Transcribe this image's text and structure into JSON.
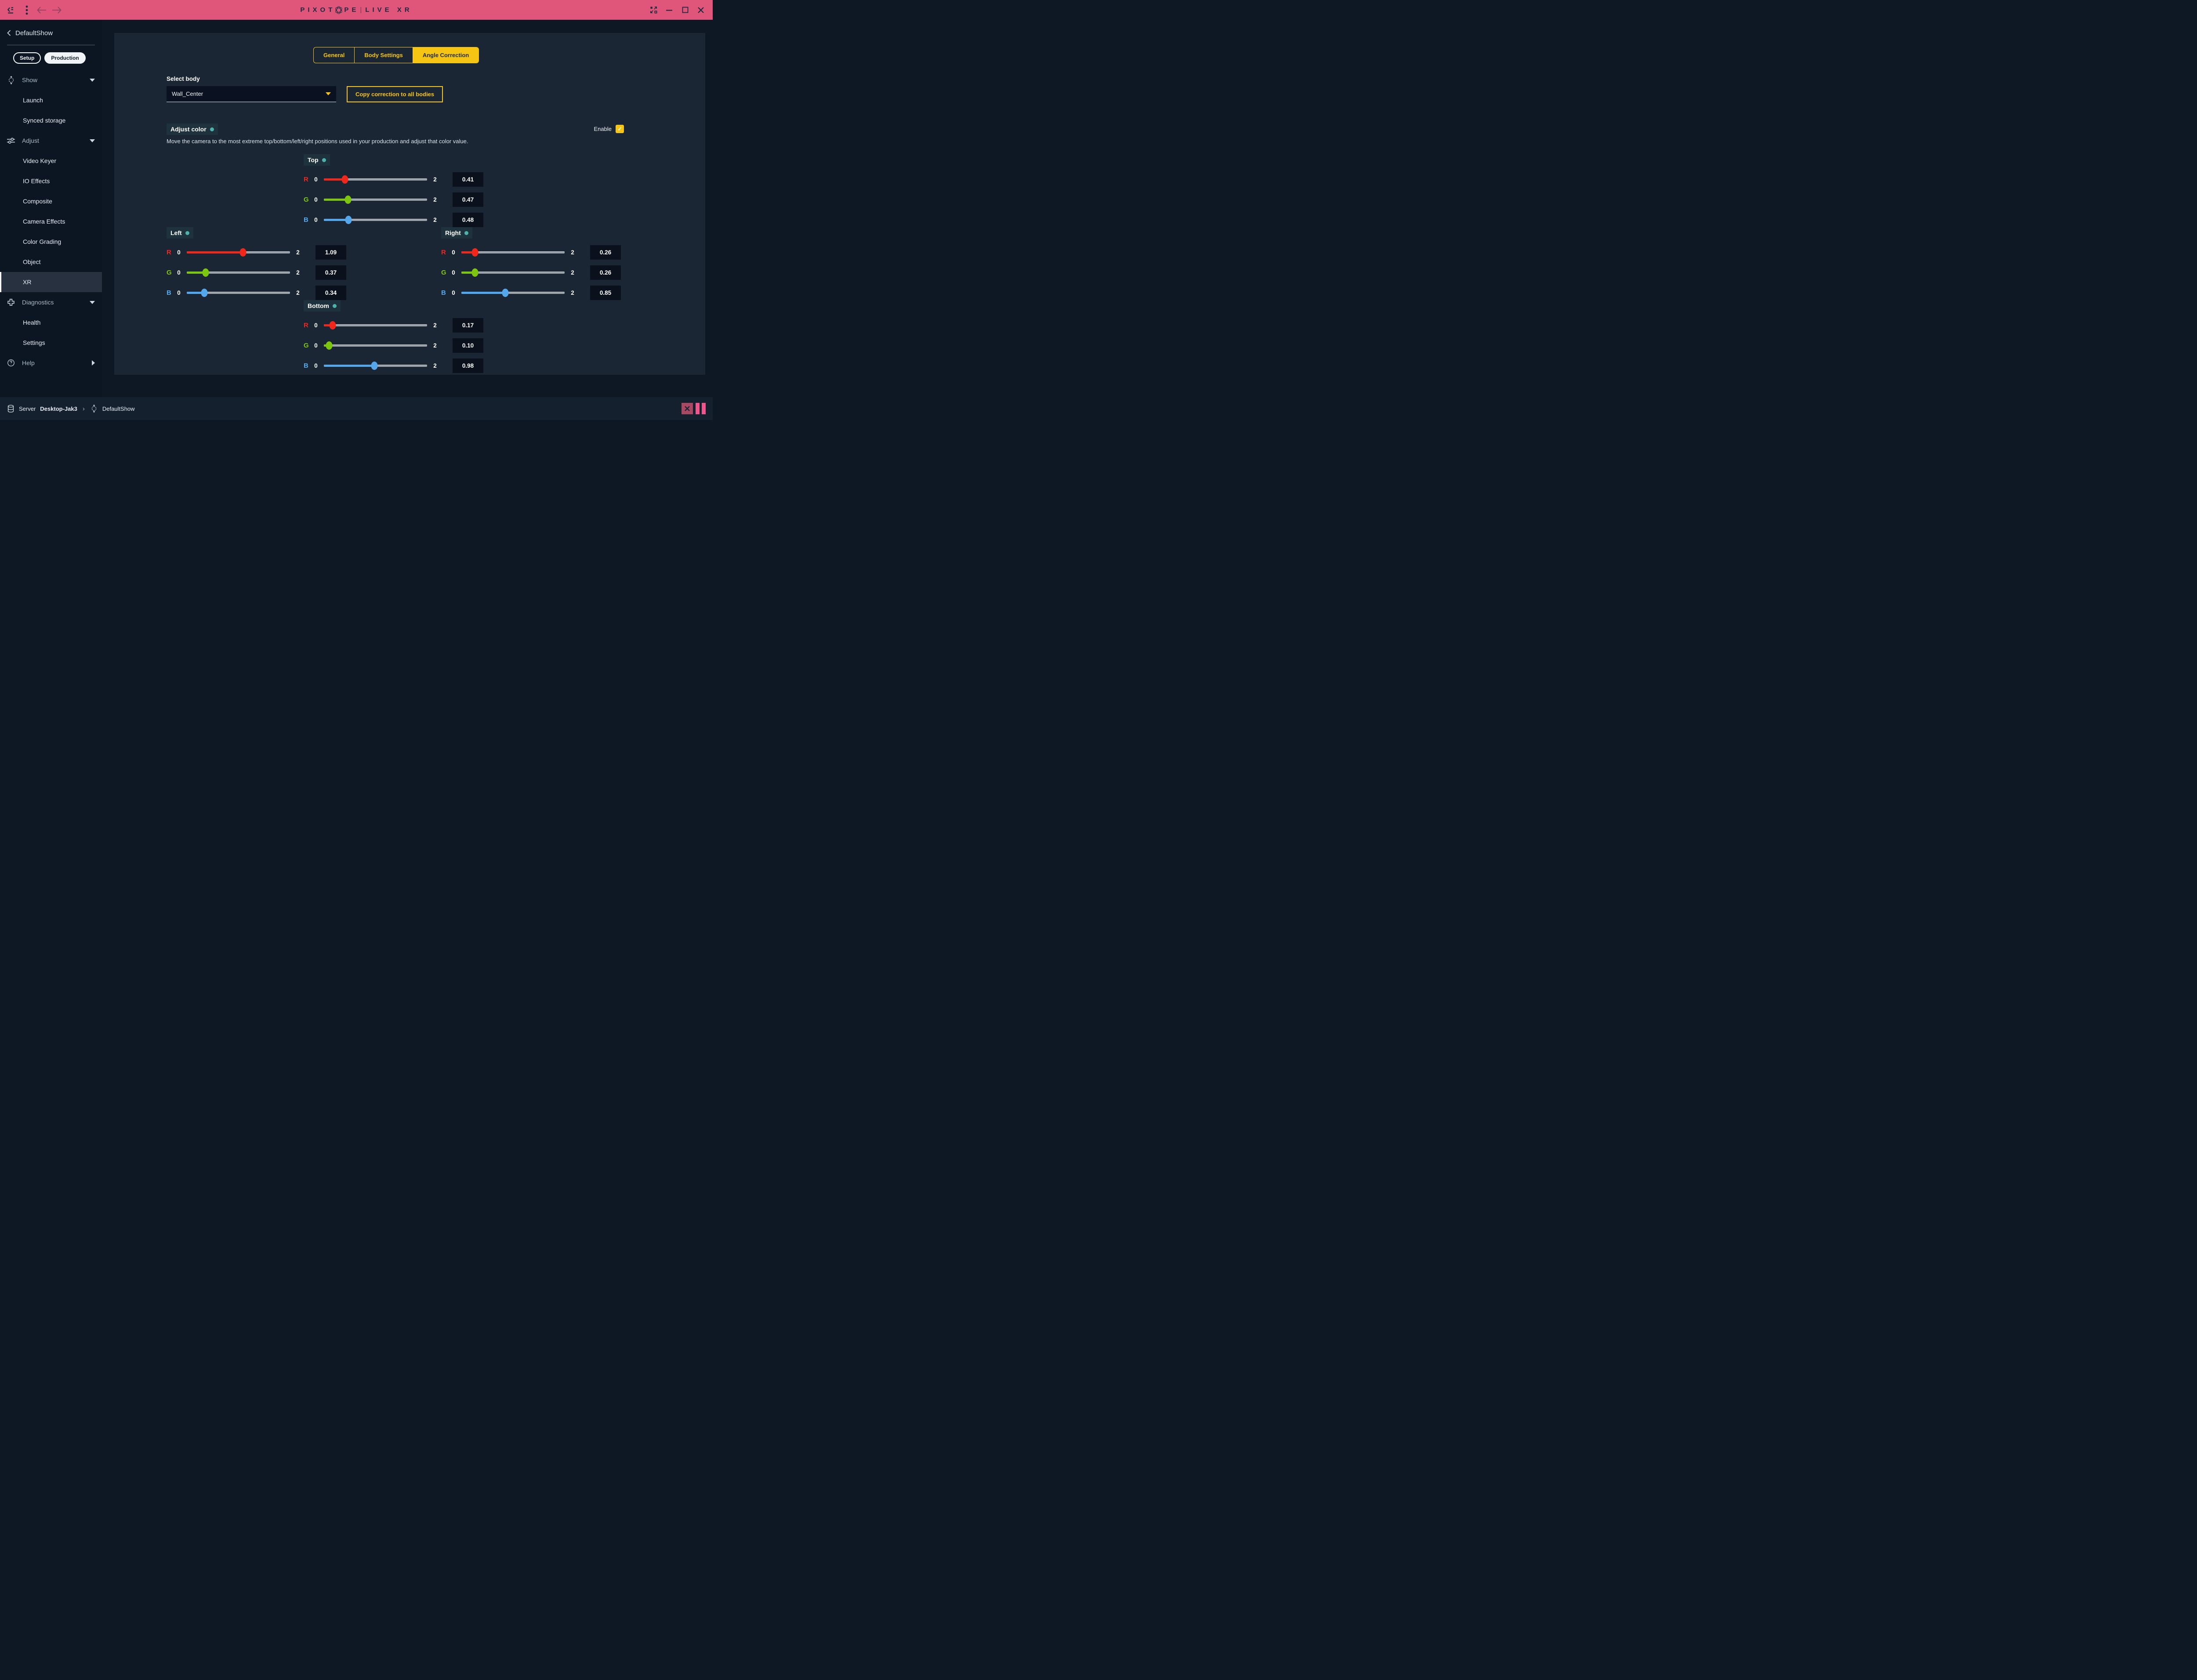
{
  "titlebar": {
    "brand": "PIXOTOPE",
    "separator": "|",
    "product": "LIVE XR"
  },
  "sidebar": {
    "back_label": "DefaultShow",
    "mode_toggle": {
      "setup": "Setup",
      "production": "Production",
      "active": "Production"
    },
    "items": [
      {
        "label": "Show",
        "type": "parent",
        "icon": "move-3d-icon",
        "caret": "down"
      },
      {
        "label": "Launch",
        "type": "child"
      },
      {
        "label": "Synced storage",
        "type": "child"
      },
      {
        "label": "Adjust",
        "type": "parent",
        "icon": "sliders-icon",
        "caret": "down"
      },
      {
        "label": "Video Keyer",
        "type": "child"
      },
      {
        "label": "IO Effects",
        "type": "child"
      },
      {
        "label": "Composite",
        "type": "child"
      },
      {
        "label": "Camera Effects",
        "type": "child"
      },
      {
        "label": "Color Grading",
        "type": "child"
      },
      {
        "label": "Object",
        "type": "child"
      },
      {
        "label": "XR",
        "type": "child",
        "selected": true
      },
      {
        "label": "Diagnostics",
        "type": "parent",
        "icon": "plus-icon",
        "caret": "down"
      },
      {
        "label": "Health",
        "type": "child"
      },
      {
        "label": "Settings",
        "type": "child"
      },
      {
        "label": "Help",
        "type": "parent",
        "icon": "help-icon",
        "caret": "right"
      }
    ]
  },
  "tabs": [
    {
      "label": "General",
      "active": false
    },
    {
      "label": "Body Settings",
      "active": false
    },
    {
      "label": "Angle Correction",
      "active": true
    }
  ],
  "select_body": {
    "label": "Select body",
    "value": "Wall_Center"
  },
  "copy_button_label": "Copy correction to all bodies",
  "adjust_color": {
    "title": "Adjust color",
    "description": "Move the camera to the most extreme top/bottom/left/right positions used in your production and adjust that color value.",
    "enable_label": "Enable",
    "enable_checked": true
  },
  "groups": [
    {
      "name": "Top",
      "layout": "center",
      "sliders": [
        {
          "channel": "R",
          "min": "0",
          "max": "2",
          "value": "0.41"
        },
        {
          "channel": "G",
          "min": "0",
          "max": "2",
          "value": "0.47"
        },
        {
          "channel": "B",
          "min": "0",
          "max": "2",
          "value": "0.48"
        }
      ]
    },
    {
      "name": "Left",
      "layout": "split-left",
      "sliders": [
        {
          "channel": "R",
          "min": "0",
          "max": "2",
          "value": "1.09"
        },
        {
          "channel": "G",
          "min": "0",
          "max": "2",
          "value": "0.37"
        },
        {
          "channel": "B",
          "min": "0",
          "max": "2",
          "value": "0.34"
        }
      ]
    },
    {
      "name": "Right",
      "layout": "split-right",
      "sliders": [
        {
          "channel": "R",
          "min": "0",
          "max": "2",
          "value": "0.26"
        },
        {
          "channel": "G",
          "min": "0",
          "max": "2",
          "value": "0.26"
        },
        {
          "channel": "B",
          "min": "0",
          "max": "2",
          "value": "0.85"
        }
      ]
    },
    {
      "name": "Bottom",
      "layout": "center",
      "sliders": [
        {
          "channel": "R",
          "min": "0",
          "max": "2",
          "value": "0.17"
        },
        {
          "channel": "G",
          "min": "0",
          "max": "2",
          "value": "0.10"
        },
        {
          "channel": "B",
          "min": "0",
          "max": "2",
          "value": "0.98"
        }
      ]
    }
  ],
  "footer": {
    "server_label": "Server",
    "server_name": "Desktop-Jak3",
    "show_name": "DefaultShow"
  },
  "colors": {
    "topbar_pink": "#e0557a",
    "accent_yellow": "#f6c513",
    "teal_dot": "#4db3aa",
    "channel_R": "#f2271c",
    "channel_G": "#7cc60d",
    "channel_B": "#55a7eb",
    "stop_button": "#a84862",
    "pause_bars": "#f0558b"
  }
}
